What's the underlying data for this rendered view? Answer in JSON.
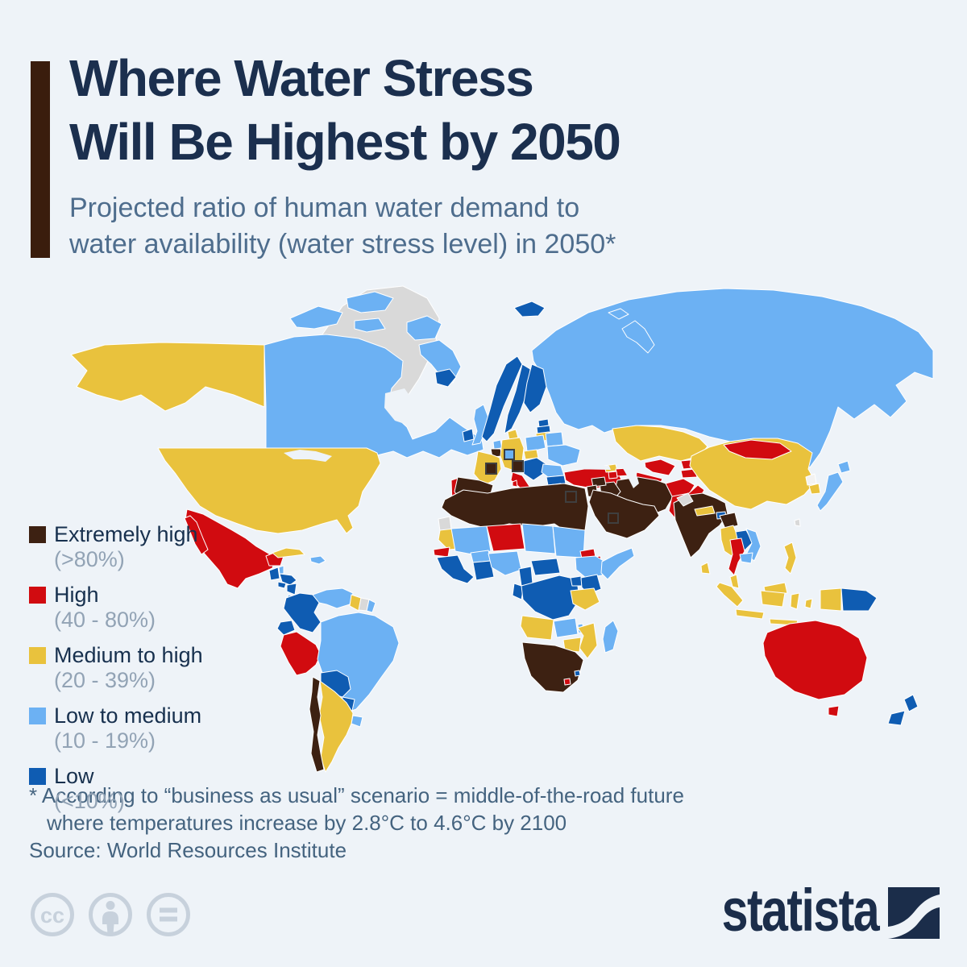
{
  "header": {
    "title_line1": "Where Water Stress",
    "title_line2": "Will Be Highest by 2050",
    "subtitle_line1": "Projected ratio of human water demand to",
    "subtitle_line2": "water availability (water stress level) in 2050*",
    "accent_color": "#3a1d0d",
    "title_color": "#1b2f4e",
    "subtitle_color": "#4e6d8d"
  },
  "legend": {
    "items": [
      {
        "level": "extremely-high",
        "label": "Extremely high",
        "range": "(>80%)",
        "color": "#3d2112"
      },
      {
        "level": "high",
        "label": "High",
        "range": "(40 - 80%)",
        "color": "#d10b10"
      },
      {
        "level": "medium-high",
        "label": "Medium to high",
        "range": "(20 - 39%)",
        "color": "#e9c23d"
      },
      {
        "level": "low-medium",
        "label": "Low to medium",
        "range": "(10 - 19%)",
        "color": "#6cb1f3"
      },
      {
        "level": "low",
        "label": "Low",
        "range": "(<10%)",
        "color": "#0f5cb2"
      }
    ]
  },
  "map": {
    "no_data_color": "#d9d9d9",
    "no_data_light_color": "#f3f2f0",
    "water_color": "#eef3f8",
    "border_color": "#ffffff",
    "regions": [
      {
        "name": "Russia",
        "level": "low-medium"
      },
      {
        "name": "Novaya Zemlya",
        "level": "low-medium"
      },
      {
        "name": "Franz Josef Land",
        "level": "low-medium"
      },
      {
        "name": "Svalbard",
        "level": "low"
      },
      {
        "name": "Greenland",
        "level": "no-data"
      },
      {
        "name": "Canada",
        "level": "low-medium"
      },
      {
        "name": "Alaska",
        "level": "medium-high"
      },
      {
        "name": "United States",
        "level": "medium-high"
      },
      {
        "name": "Mexico",
        "level": "high"
      },
      {
        "name": "Cuba",
        "level": "medium-high"
      },
      {
        "name": "Hispaniola",
        "level": "low-medium"
      },
      {
        "name": "Belize",
        "level": "low-medium"
      },
      {
        "name": "Guatemala",
        "level": "low"
      },
      {
        "name": "Honduras",
        "level": "low"
      },
      {
        "name": "El Salvador",
        "level": "low"
      },
      {
        "name": "Nicaragua",
        "level": "low"
      },
      {
        "name": "Costa Rica",
        "level": "low-medium"
      },
      {
        "name": "Panama",
        "level": "low-medium"
      },
      {
        "name": "Colombia",
        "level": "low"
      },
      {
        "name": "Venezuela",
        "level": "low-medium"
      },
      {
        "name": "Guyana",
        "level": "medium-high"
      },
      {
        "name": "Suriname",
        "level": "no-data"
      },
      {
        "name": "French Guiana",
        "level": "low-medium"
      },
      {
        "name": "Ecuador",
        "level": "low"
      },
      {
        "name": "Peru",
        "level": "high"
      },
      {
        "name": "Brazil",
        "level": "low-medium"
      },
      {
        "name": "Bolivia",
        "level": "low"
      },
      {
        "name": "Paraguay",
        "level": "low"
      },
      {
        "name": "Uruguay",
        "level": "low-medium"
      },
      {
        "name": "Argentina",
        "level": "medium-high"
      },
      {
        "name": "Chile",
        "level": "extremely-high"
      },
      {
        "name": "Iceland",
        "level": "low"
      },
      {
        "name": "Ireland",
        "level": "low"
      },
      {
        "name": "United Kingdom",
        "level": "low-medium"
      },
      {
        "name": "Norway",
        "level": "low"
      },
      {
        "name": "Sweden",
        "level": "low"
      },
      {
        "name": "Finland",
        "level": "low"
      },
      {
        "name": "Denmark",
        "level": "medium-high"
      },
      {
        "name": "Estonia",
        "level": "low"
      },
      {
        "name": "Latvia",
        "level": "low"
      },
      {
        "name": "Lithuania",
        "level": "medium-high"
      },
      {
        "name": "Poland",
        "level": "low-medium"
      },
      {
        "name": "Belarus",
        "level": "low-medium"
      },
      {
        "name": "Ukraine",
        "level": "low-medium"
      },
      {
        "name": "Netherlands",
        "level": "low-medium"
      },
      {
        "name": "Belgium",
        "level": "extremely-high"
      },
      {
        "name": "Germany",
        "level": "medium-high"
      },
      {
        "name": "Czechia",
        "level": "medium-high"
      },
      {
        "name": "France",
        "level": "medium-high"
      },
      {
        "name": "Portugal",
        "level": "high"
      },
      {
        "name": "Spain",
        "level": "extremely-high"
      },
      {
        "name": "Italy",
        "level": "high"
      },
      {
        "name": "Austria & Balkans",
        "level": "low"
      },
      {
        "name": "Romania",
        "level": "low-medium"
      },
      {
        "name": "Bulgaria",
        "level": "low"
      },
      {
        "name": "Greece",
        "level": "no-data-light"
      },
      {
        "name": "Turkey",
        "level": "high"
      },
      {
        "name": "Kazakhstan",
        "level": "medium-high"
      },
      {
        "name": "Uzbekistan",
        "level": "high"
      },
      {
        "name": "Turkmenistan",
        "level": "high"
      },
      {
        "name": "Kyrgyzstan",
        "level": "high"
      },
      {
        "name": "Tajikistan",
        "level": "high"
      },
      {
        "name": "Georgia",
        "level": "medium-high"
      },
      {
        "name": "Azerbaijan",
        "level": "high"
      },
      {
        "name": "Armenia",
        "level": "high"
      },
      {
        "name": "Iran",
        "level": "extremely-high"
      },
      {
        "name": "Iraq",
        "level": "extremely-high"
      },
      {
        "name": "Syria",
        "level": "extremely-high"
      },
      {
        "name": "Jordan & Israel",
        "level": "extremely-high"
      },
      {
        "name": "Arabian Peninsula",
        "level": "extremely-high"
      },
      {
        "name": "Afghanistan",
        "level": "high"
      },
      {
        "name": "Pakistan",
        "level": "high"
      },
      {
        "name": "India",
        "level": "extremely-high"
      },
      {
        "name": "Kashmir",
        "level": "no-data"
      },
      {
        "name": "Nepal",
        "level": "medium-high"
      },
      {
        "name": "Bhutan",
        "level": "low"
      },
      {
        "name": "Bangladesh & NE India",
        "level": "extremely-high"
      },
      {
        "name": "Sri Lanka",
        "level": "medium-high"
      },
      {
        "name": "China",
        "level": "medium-high"
      },
      {
        "name": "Mongolia",
        "level": "high"
      },
      {
        "name": "North Korea",
        "level": "no-data-light"
      },
      {
        "name": "South Korea",
        "level": "medium-high"
      },
      {
        "name": "Japan",
        "level": "low-medium"
      },
      {
        "name": "Taiwan",
        "level": "no-data"
      },
      {
        "name": "Myanmar",
        "level": "medium-high"
      },
      {
        "name": "Laos",
        "level": "low"
      },
      {
        "name": "Thailand",
        "level": "high"
      },
      {
        "name": "Vietnam",
        "level": "low-medium"
      },
      {
        "name": "Cambodia",
        "level": "low-medium"
      },
      {
        "name": "Malaysia",
        "level": "medium-high"
      },
      {
        "name": "Indonesia",
        "level": "medium-high"
      },
      {
        "name": "West Papua",
        "level": "medium-high"
      },
      {
        "name": "Papua New Guinea",
        "level": "low"
      },
      {
        "name": "Philippines",
        "level": "medium-high"
      },
      {
        "name": "Australia",
        "level": "high"
      },
      {
        "name": "New Zealand",
        "level": "low"
      },
      {
        "name": "North Africa",
        "level": "extremely-high"
      },
      {
        "name": "Western Sahara",
        "level": "no-data"
      },
      {
        "name": "Mauritania",
        "level": "medium-high"
      },
      {
        "name": "Senegal & Gambia",
        "level": "high"
      },
      {
        "name": "Guinea Coast",
        "level": "low"
      },
      {
        "name": "Mali",
        "level": "low-medium"
      },
      {
        "name": "Burkina Faso",
        "level": "low-medium"
      },
      {
        "name": "Ghana, Togo & Benin",
        "level": "low"
      },
      {
        "name": "Niger",
        "level": "high"
      },
      {
        "name": "Chad",
        "level": "low-medium"
      },
      {
        "name": "Sudan",
        "level": "low-medium"
      },
      {
        "name": "Eritrea",
        "level": "high"
      },
      {
        "name": "Djibouti",
        "level": "high"
      },
      {
        "name": "Ethiopia",
        "level": "low-medium"
      },
      {
        "name": "Somalia",
        "level": "low-medium"
      },
      {
        "name": "Nigeria",
        "level": "low-medium"
      },
      {
        "name": "Cameroon",
        "level": "low"
      },
      {
        "name": "Central African Republic",
        "level": "low"
      },
      {
        "name": "Gabon & Congo",
        "level": "low"
      },
      {
        "name": "DR Congo",
        "level": "low"
      },
      {
        "name": "Uganda",
        "level": "low"
      },
      {
        "name": "Kenya",
        "level": "low"
      },
      {
        "name": "Tanzania",
        "level": "medium-high"
      },
      {
        "name": "Angola",
        "level": "medium-high"
      },
      {
        "name": "Zambia",
        "level": "low-medium"
      },
      {
        "name": "Malawi",
        "level": "low-medium"
      },
      {
        "name": "Mozambique",
        "level": "medium-high"
      },
      {
        "name": "Zimbabwe",
        "level": "medium-high"
      },
      {
        "name": "Southern Africa",
        "level": "extremely-high"
      },
      {
        "name": "Lesotho",
        "level": "high"
      },
      {
        "name": "Eswatini",
        "level": "low"
      },
      {
        "name": "Madagascar",
        "level": "low-medium"
      },
      {
        "name": "Switzerland",
        "level": "low-medium"
      },
      {
        "name": "Andorra",
        "level": "extremely-high"
      },
      {
        "name": "San Marino",
        "level": "extremely-high"
      },
      {
        "name": "Cyprus",
        "level": "extremely-high"
      },
      {
        "name": "Bahrain & Qatar",
        "level": "extremely-high"
      }
    ]
  },
  "footnote": {
    "line1": "* According to “business as usual” scenario = middle-of-the-road future",
    "line2": "where temperatures increase by 2.8°C to 4.6°C by 2100"
  },
  "source": {
    "text": "Source: World Resources Institute"
  },
  "branding": {
    "logo_text": "statista",
    "logo_color": "#1b2d4a",
    "license_icon_color": "#c7d1dc"
  }
}
